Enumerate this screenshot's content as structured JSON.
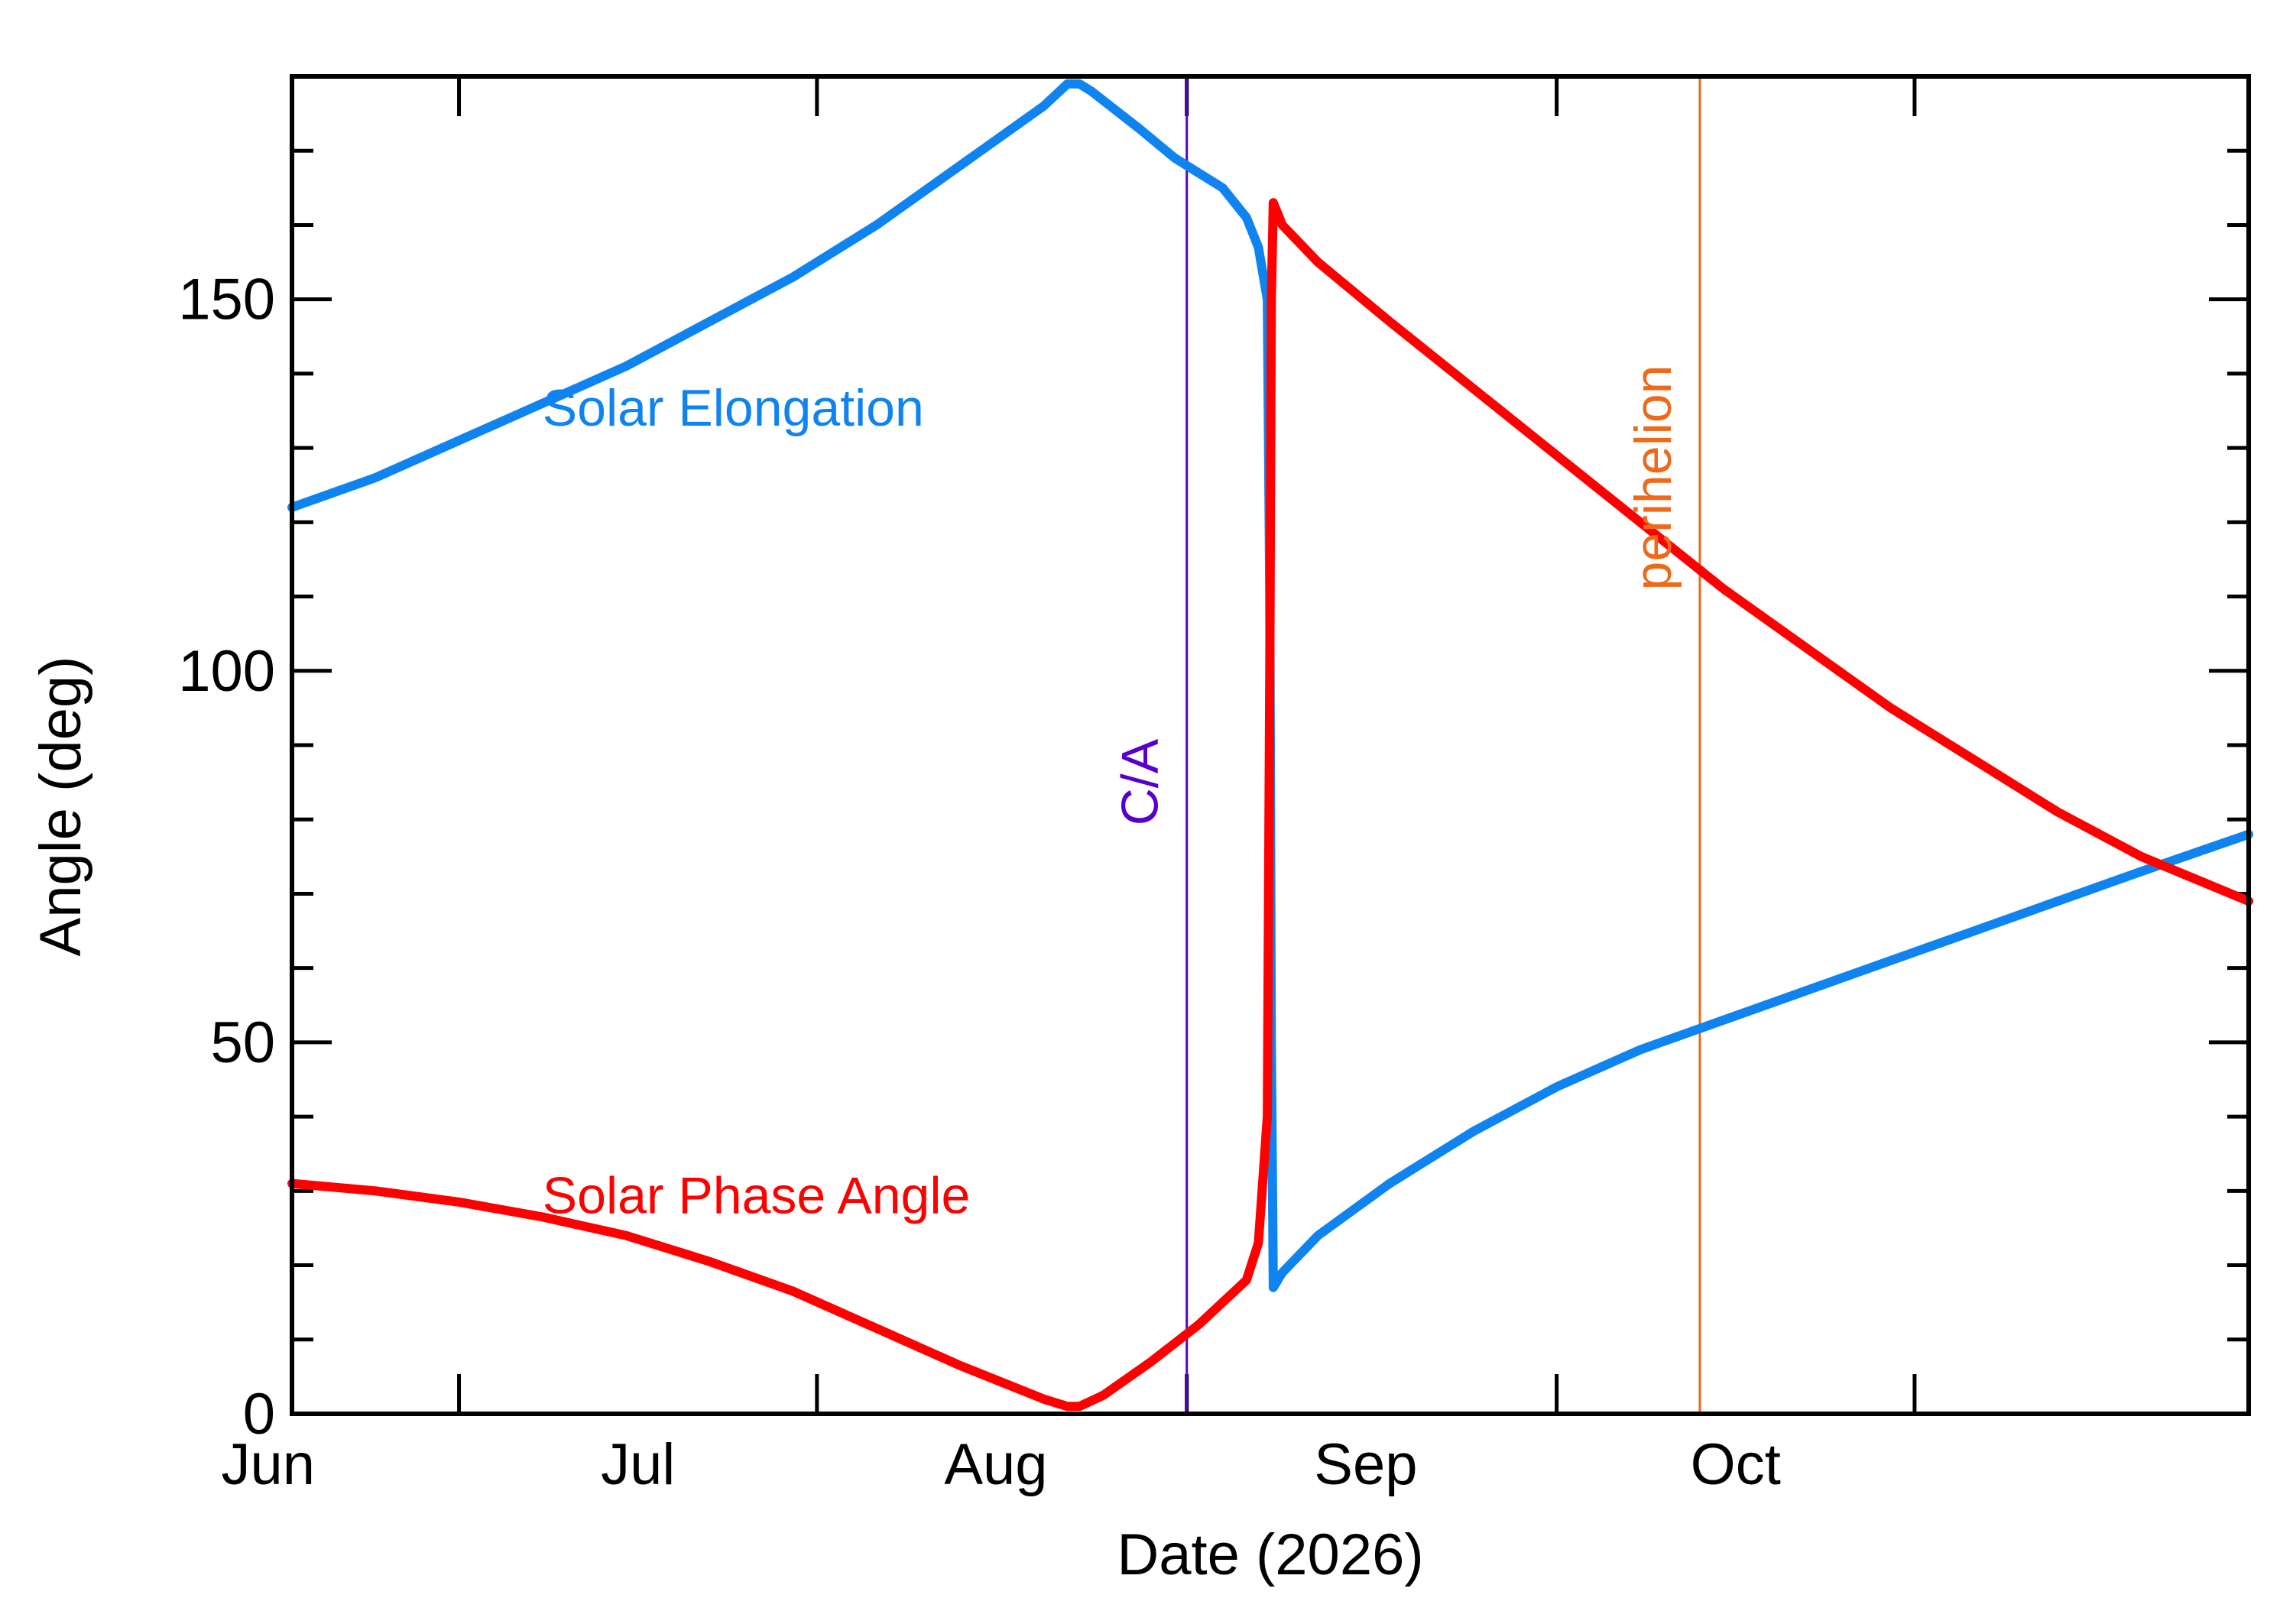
{
  "chart_data": {
    "type": "line",
    "xlabel": "Date (2026)",
    "ylabel": "Angle (deg)",
    "x_range": [
      "2026-05-18",
      "2026-10-29"
    ],
    "ylim": [
      0,
      180
    ],
    "y_ticks": [
      0,
      50,
      100,
      150
    ],
    "y_minor_step": 10,
    "x_tick_dates": [
      "2026-05-01",
      "2026-06-01",
      "2026-07-01",
      "2026-08-01",
      "2026-09-01",
      "2026-10-01"
    ],
    "x_tick_labels": [
      {
        "text": "Jun",
        "date": "2026-05-16"
      },
      {
        "text": "Jul",
        "date": "2026-06-16"
      },
      {
        "text": "Aug",
        "date": "2026-07-16"
      },
      {
        "text": "Sep",
        "date": "2026-08-16"
      },
      {
        "text": "Oct",
        "date": "2026-09-16"
      }
    ],
    "grid": false,
    "markers": [
      {
        "label": "C/A",
        "date": "2026-08-01",
        "color": "#5500cc"
      },
      {
        "label": "perihelion",
        "date": "2026-09-13",
        "color": "#ee6a1a"
      }
    ],
    "series": [
      {
        "name": "Solar Elongation",
        "color": "#0f84f0",
        "label_at": {
          "date": "2026-06-08",
          "y": 133
        },
        "points": [
          [
            "2026-05-18",
            122
          ],
          [
            "2026-05-25",
            126
          ],
          [
            "2026-06-01",
            131
          ],
          [
            "2026-06-08",
            136
          ],
          [
            "2026-06-15",
            141
          ],
          [
            "2026-06-22",
            147
          ],
          [
            "2026-06-29",
            153
          ],
          [
            "2026-07-06",
            160
          ],
          [
            "2026-07-13",
            168
          ],
          [
            "2026-07-20",
            176
          ],
          [
            "2026-07-22",
            179
          ],
          [
            "2026-07-23",
            179
          ],
          [
            "2026-07-24",
            178
          ],
          [
            "2026-07-28",
            173
          ],
          [
            "2026-07-31",
            169
          ],
          [
            "2026-08-04",
            165
          ],
          [
            "2026-08-06",
            161
          ],
          [
            "2026-08-07",
            157
          ],
          [
            "2026-08-07T18:00",
            150
          ],
          [
            "2026-08-07T23:00",
            110
          ],
          [
            "2026-08-08T02:00",
            50
          ],
          [
            "2026-08-08T06:00",
            17
          ],
          [
            "2026-08-09",
            19
          ],
          [
            "2026-08-12",
            24
          ],
          [
            "2026-08-18",
            31
          ],
          [
            "2026-08-25",
            38
          ],
          [
            "2026-09-01",
            44
          ],
          [
            "2026-09-08",
            49
          ],
          [
            "2026-09-15",
            53
          ],
          [
            "2026-09-22",
            57
          ],
          [
            "2026-09-29",
            61
          ],
          [
            "2026-10-06",
            65
          ],
          [
            "2026-10-13",
            69
          ],
          [
            "2026-10-20",
            73
          ],
          [
            "2026-10-29",
            78
          ]
        ]
      },
      {
        "name": "Solar Phase Angle",
        "color": "#ff0000",
        "label_at": {
          "date": "2026-06-08",
          "y": 27
        },
        "points": [
          [
            "2026-05-18",
            31
          ],
          [
            "2026-05-25",
            30
          ],
          [
            "2026-06-01",
            28.5
          ],
          [
            "2026-06-08",
            26.5
          ],
          [
            "2026-06-15",
            24
          ],
          [
            "2026-06-22",
            20.5
          ],
          [
            "2026-06-29",
            16.5
          ],
          [
            "2026-07-06",
            11.5
          ],
          [
            "2026-07-13",
            6.5
          ],
          [
            "2026-07-20",
            2
          ],
          [
            "2026-07-22",
            1
          ],
          [
            "2026-07-23",
            1
          ],
          [
            "2026-07-25",
            2.5
          ],
          [
            "2026-07-29",
            7
          ],
          [
            "2026-08-02",
            12
          ],
          [
            "2026-08-05",
            16.5
          ],
          [
            "2026-08-06",
            18
          ],
          [
            "2026-08-07",
            23
          ],
          [
            "2026-08-07T18:00",
            40
          ],
          [
            "2026-08-07T23:00",
            100
          ],
          [
            "2026-08-08T02:00",
            150
          ],
          [
            "2026-08-08T06:00",
            163
          ],
          [
            "2026-08-09",
            160
          ],
          [
            "2026-08-12",
            155
          ],
          [
            "2026-08-18",
            147
          ],
          [
            "2026-08-25",
            138
          ],
          [
            "2026-09-01",
            129
          ],
          [
            "2026-09-08",
            120
          ],
          [
            "2026-09-15",
            111
          ],
          [
            "2026-09-22",
            103
          ],
          [
            "2026-09-29",
            95
          ],
          [
            "2026-10-06",
            88
          ],
          [
            "2026-10-13",
            81
          ],
          [
            "2026-10-20",
            75
          ],
          [
            "2026-10-29",
            69
          ]
        ]
      }
    ]
  }
}
